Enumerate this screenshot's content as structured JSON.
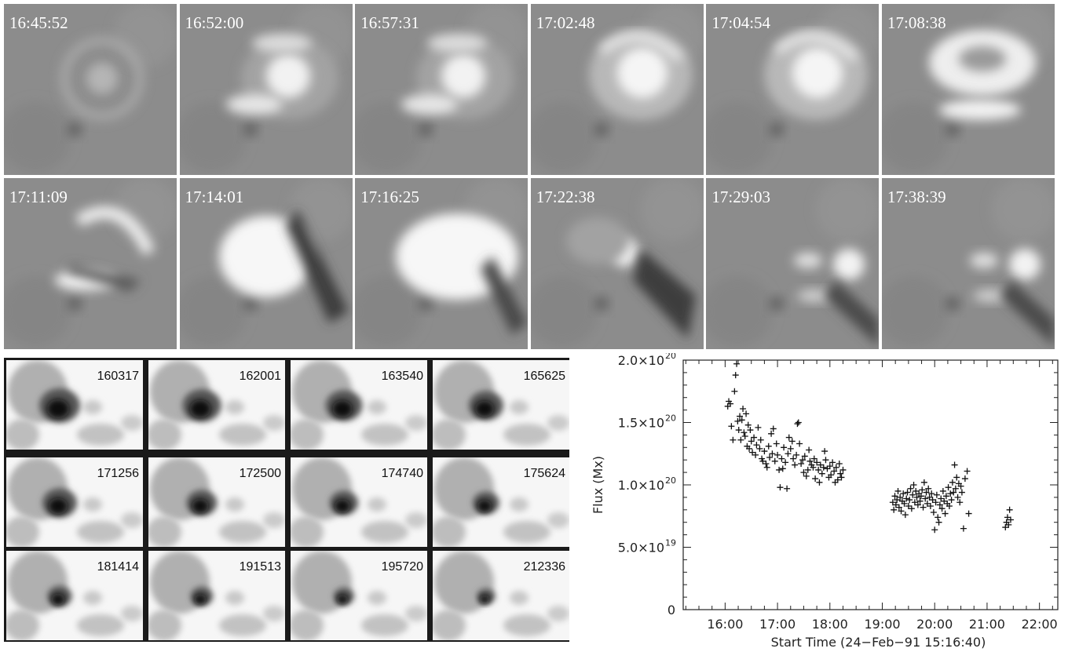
{
  "halpha_panel": {
    "frames": [
      {
        "time": "16:45:52",
        "stage": 0
      },
      {
        "time": "16:52:00",
        "stage": 1
      },
      {
        "time": "16:57:31",
        "stage": 2
      },
      {
        "time": "17:02:48",
        "stage": 3
      },
      {
        "time": "17:04:54",
        "stage": 3
      },
      {
        "time": "17:08:38",
        "stage": 4
      },
      {
        "time": "17:11:09",
        "stage": 5
      },
      {
        "time": "17:14:01",
        "stage": 6
      },
      {
        "time": "17:16:25",
        "stage": 7
      },
      {
        "time": "17:22:38",
        "stage": 8
      },
      {
        "time": "17:29:03",
        "stage": 9
      },
      {
        "time": "17:38:39",
        "stage": 9
      }
    ]
  },
  "magnetogram_panel": {
    "frames": [
      {
        "label": "160317",
        "umbra": 1.0
      },
      {
        "label": "162001",
        "umbra": 0.95
      },
      {
        "label": "163540",
        "umbra": 0.9
      },
      {
        "label": "165625",
        "umbra": 0.85
      },
      {
        "label": "171256",
        "umbra": 0.85
      },
      {
        "label": "172500",
        "umbra": 0.75
      },
      {
        "label": "174740",
        "umbra": 0.7
      },
      {
        "label": "175624",
        "umbra": 0.65
      },
      {
        "label": "181414",
        "umbra": 0.6
      },
      {
        "label": "191513",
        "umbra": 0.55
      },
      {
        "label": "195720",
        "umbra": 0.5
      },
      {
        "label": "212336",
        "umbra": 0.45
      }
    ]
  },
  "chart_data": {
    "type": "scatter",
    "xlabel": "Start Time (24−Feb−91 15:16:40)",
    "ylabel": "Flux (Mx)",
    "x_unit": "hours UT",
    "xlim": [
      15.2,
      22.35
    ],
    "ylim": [
      0,
      2e+20
    ],
    "x_ticks": [
      {
        "value": 16,
        "label": "16:00"
      },
      {
        "value": 17,
        "label": "17:00"
      },
      {
        "value": 18,
        "label": "18:00"
      },
      {
        "value": 19,
        "label": "19:00"
      },
      {
        "value": 20,
        "label": "20:00"
      },
      {
        "value": 21,
        "label": "21:00"
      },
      {
        "value": 22,
        "label": "22:00"
      }
    ],
    "y_ticks": [
      {
        "value": 0,
        "label": "0",
        "exp": ""
      },
      {
        "value": 5e+19,
        "label": "5.0×10",
        "exp": "19"
      },
      {
        "value": 1e+20,
        "label": "1.0×10",
        "exp": "20"
      },
      {
        "value": 1.5e+20,
        "label": "1.5×10",
        "exp": "20"
      },
      {
        "value": 2e+20,
        "label": "2.0×10",
        "exp": "20"
      }
    ],
    "marker": "+",
    "points": [
      [
        16.05,
        1.63e+20
      ],
      [
        16.07,
        1.67e+20
      ],
      [
        16.1,
        1.65e+20
      ],
      [
        16.12,
        1.47e+20
      ],
      [
        16.15,
        1.36e+20
      ],
      [
        16.18,
        1.75e+20
      ],
      [
        16.2,
        1.88e+20
      ],
      [
        16.22,
        1.97e+20
      ],
      [
        16.24,
        1.51e+20
      ],
      [
        16.26,
        1.44e+20
      ],
      [
        16.28,
        1.55e+20
      ],
      [
        16.3,
        1.36e+20
      ],
      [
        16.32,
        1.52e+20
      ],
      [
        16.34,
        1.61e+20
      ],
      [
        16.36,
        1.42e+20
      ],
      [
        16.38,
        1.39e+20
      ],
      [
        16.4,
        1.57e+20
      ],
      [
        16.42,
        1.31e+20
      ],
      [
        16.44,
        1.48e+20
      ],
      [
        16.46,
        1.29e+20
      ],
      [
        16.48,
        1.44e+20
      ],
      [
        16.5,
        1.35e+20
      ],
      [
        16.52,
        1.26e+20
      ],
      [
        16.55,
        1.38e+20
      ],
      [
        16.58,
        1.24e+20
      ],
      [
        16.6,
        1.32e+20
      ],
      [
        16.63,
        1.46e+20
      ],
      [
        16.66,
        1.29e+20
      ],
      [
        16.68,
        1.36e+20
      ],
      [
        16.7,
        1.21e+20
      ],
      [
        16.72,
        1.19e+20
      ],
      [
        16.75,
        1.27e+20
      ],
      [
        16.78,
        1.17e+20
      ],
      [
        16.8,
        1.14e+20
      ],
      [
        16.83,
        1.31e+20
      ],
      [
        16.85,
        1.22e+20
      ],
      [
        16.88,
        1.41e+20
      ],
      [
        16.9,
        1.25e+20
      ],
      [
        16.92,
        1.45e+20
      ],
      [
        16.95,
        1.19e+20
      ],
      [
        16.98,
        1.33e+20
      ],
      [
        17.0,
        1.24e+20
      ],
      [
        17.03,
        1.12e+20
      ],
      [
        17.05,
        9.8e+19
      ],
      [
        17.08,
        1.21e+20
      ],
      [
        17.1,
        1.13e+20
      ],
      [
        17.12,
        1.3e+20
      ],
      [
        17.15,
        1.18e+20
      ],
      [
        17.18,
        9.7e+19
      ],
      [
        17.2,
        1.25e+20
      ],
      [
        17.22,
        1.38e+20
      ],
      [
        17.25,
        1.29e+20
      ],
      [
        17.28,
        1.35e+20
      ],
      [
        17.3,
        1.21e+20
      ],
      [
        17.33,
        1.16e+20
      ],
      [
        17.36,
        1.24e+20
      ],
      [
        17.38,
        1.49e+20
      ],
      [
        17.4,
        1.5e+20
      ],
      [
        17.42,
        1.33e+20
      ],
      [
        17.45,
        1.17e+20
      ],
      [
        17.48,
        1.2e+20
      ],
      [
        17.5,
        1.1e+20
      ],
      [
        17.52,
        1.23e+20
      ],
      [
        17.55,
        1.07e+20
      ],
      [
        17.58,
        1.12e+20
      ],
      [
        17.6,
        1.28e+20
      ],
      [
        17.62,
        1.19e+20
      ],
      [
        17.65,
        1.16e+20
      ],
      [
        17.68,
        1.14e+20
      ],
      [
        17.7,
        1.21e+20
      ],
      [
        17.72,
        1.05e+20
      ],
      [
        17.75,
        1.18e+20
      ],
      [
        17.78,
        1.12e+20
      ],
      [
        17.8,
        1.02e+20
      ],
      [
        17.82,
        1.16e+20
      ],
      [
        17.85,
        1.09e+20
      ],
      [
        17.88,
        1.14e+20
      ],
      [
        17.9,
        1.27e+20
      ],
      [
        17.92,
        1.2e+20
      ],
      [
        17.95,
        1.13e+20
      ],
      [
        17.98,
        1.06e+20
      ],
      [
        18.0,
        1.15e+20
      ],
      [
        18.02,
        1.08e+20
      ],
      [
        18.05,
        1.18e+20
      ],
      [
        18.08,
        1.11e+20
      ],
      [
        18.1,
        1.02e+20
      ],
      [
        18.12,
        1.14e+20
      ],
      [
        18.15,
        1.04e+20
      ],
      [
        18.18,
        1.17e+20
      ],
      [
        18.2,
        1.09e+20
      ],
      [
        18.22,
        1.06e+20
      ],
      [
        18.25,
        1.12e+20
      ],
      [
        19.2,
        8.6e+19
      ],
      [
        19.22,
        8e+19
      ],
      [
        19.24,
        9.1e+19
      ],
      [
        19.26,
        8.4e+19
      ],
      [
        19.28,
        8.8e+19
      ],
      [
        19.3,
        9.5e+19
      ],
      [
        19.32,
        8.2e+19
      ],
      [
        19.34,
        9e+19
      ],
      [
        19.36,
        7.9e+19
      ],
      [
        19.38,
        8.7e+19
      ],
      [
        19.4,
        9.3e+19
      ],
      [
        19.42,
        8.5e+19
      ],
      [
        19.44,
        7.6e+19
      ],
      [
        19.46,
        8.9e+19
      ],
      [
        19.48,
        9.4e+19
      ],
      [
        19.5,
        8.3e+19
      ],
      [
        19.52,
        8.8e+19
      ],
      [
        19.54,
        9.7e+19
      ],
      [
        19.56,
        8.1e+19
      ],
      [
        19.58,
        9.2e+19
      ],
      [
        19.6,
        1e+20
      ],
      [
        19.62,
        8.6e+19
      ],
      [
        19.64,
        9.5e+19
      ],
      [
        19.66,
        9e+19
      ],
      [
        19.68,
        8.4e+19
      ],
      [
        19.7,
        9.3e+19
      ],
      [
        19.72,
        8.7e+19
      ],
      [
        19.74,
        9.1e+19
      ],
      [
        19.76,
        9.6e+19
      ],
      [
        19.78,
        8.2e+19
      ],
      [
        19.8,
        1.02e+20
      ],
      [
        19.82,
        8.9e+19
      ],
      [
        19.84,
        9.4e+19
      ],
      [
        19.86,
        8.5e+19
      ],
      [
        19.88,
        9.7e+19
      ],
      [
        19.9,
        9e+19
      ],
      [
        19.92,
        8.3e+19
      ],
      [
        19.94,
        9.3e+19
      ],
      [
        19.96,
        8.8e+19
      ],
      [
        19.98,
        7.8e+19
      ],
      [
        20.0,
        6.4e+19
      ],
      [
        20.02,
        8.6e+19
      ],
      [
        20.04,
        9.2e+19
      ],
      [
        20.06,
        7.4e+19
      ],
      [
        20.08,
        7e+19
      ],
      [
        20.1,
        8.4e+19
      ],
      [
        20.12,
        8.9e+19
      ],
      [
        20.14,
        8.1e+19
      ],
      [
        20.16,
        9.5e+19
      ],
      [
        20.18,
        8.7e+19
      ],
      [
        20.2,
        7.7e+19
      ],
      [
        20.22,
        9.1e+19
      ],
      [
        20.24,
        8.5e+19
      ],
      [
        20.26,
        9.8e+19
      ],
      [
        20.28,
        8.3e+19
      ],
      [
        20.3,
        9.3e+19
      ],
      [
        20.32,
        8.8e+19
      ],
      [
        20.34,
        1.02e+20
      ],
      [
        20.36,
        9.4e+19
      ],
      [
        20.38,
        1.16e+20
      ],
      [
        20.4,
        9.7e+19
      ],
      [
        20.42,
        1.06e+20
      ],
      [
        20.44,
        9e+19
      ],
      [
        20.46,
        1.01e+20
      ],
      [
        20.48,
        8.6e+19
      ],
      [
        20.5,
        9.9e+19
      ],
      [
        20.52,
        9.4e+19
      ],
      [
        20.55,
        6.5e+19
      ],
      [
        20.58,
        1.05e+20
      ],
      [
        20.62,
        1.11e+20
      ],
      [
        20.65,
        7.7e+19
      ],
      [
        21.35,
        6.6e+19
      ],
      [
        21.37,
        7e+19
      ],
      [
        21.39,
        7.4e+19
      ],
      [
        21.41,
        6.8e+19
      ],
      [
        21.43,
        8e+19
      ],
      [
        21.45,
        7.2e+19
      ]
    ]
  }
}
